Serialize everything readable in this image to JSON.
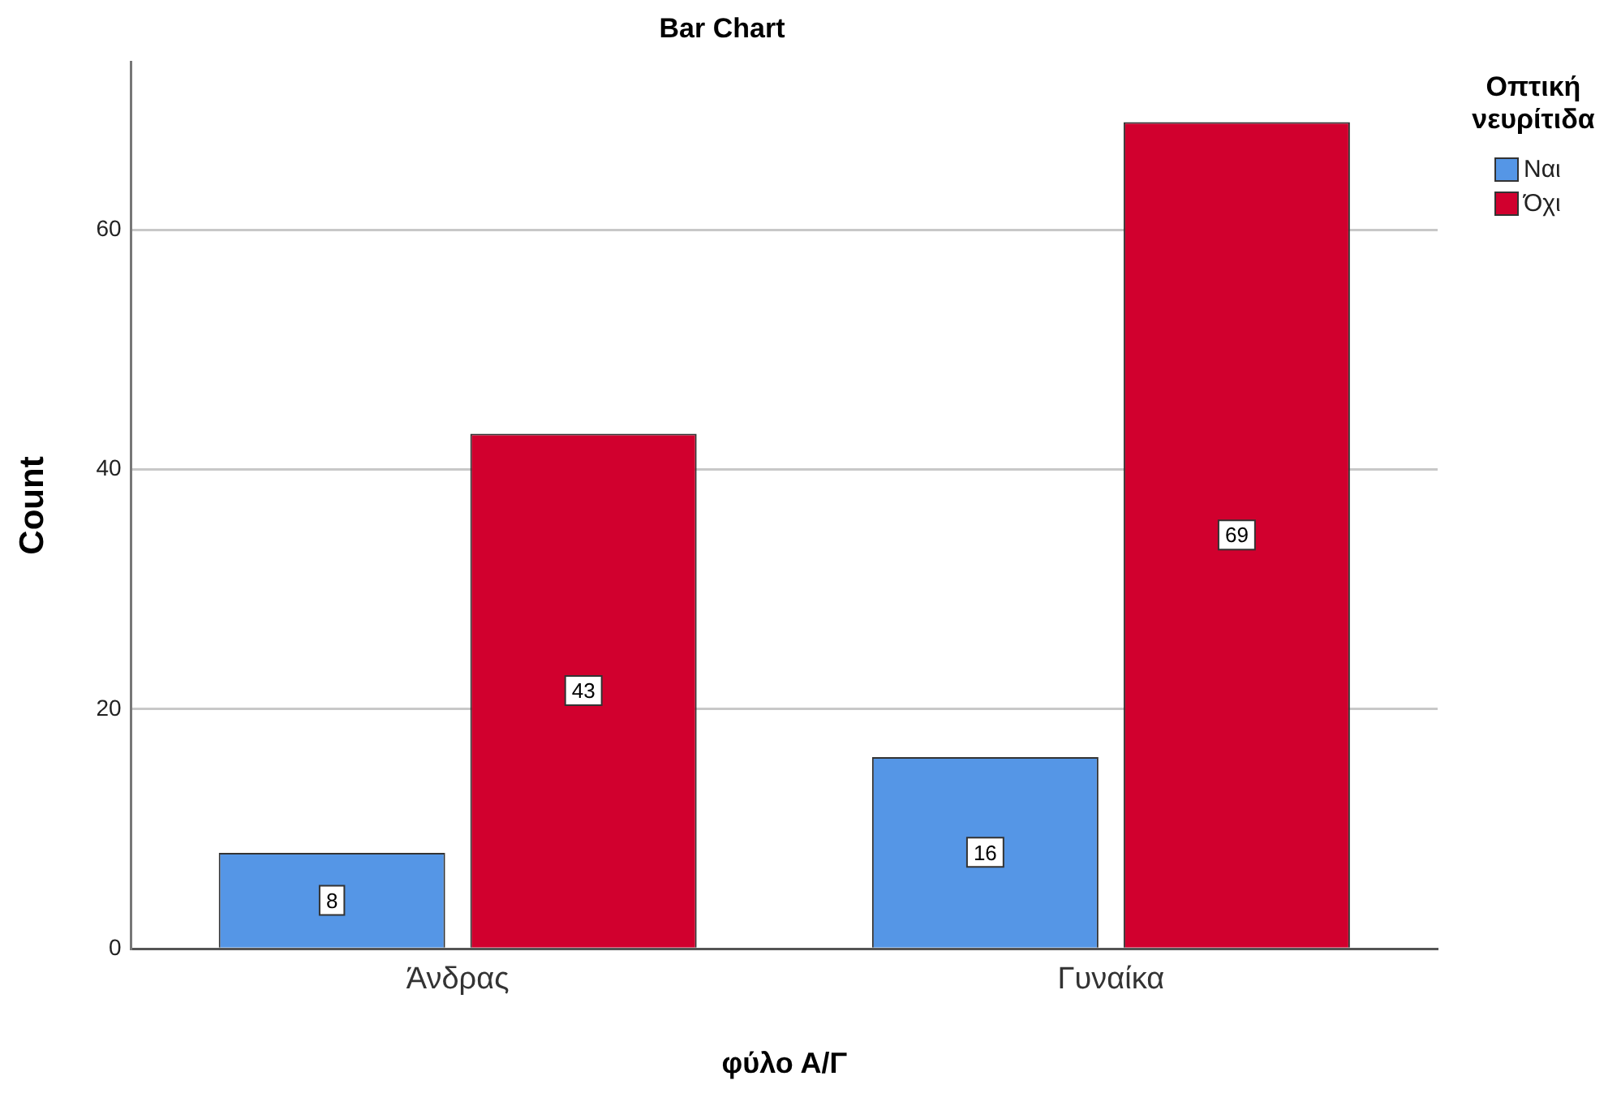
{
  "chart_data": {
    "type": "bar",
    "title": "Bar Chart",
    "xlabel": "φύλο Α/Γ",
    "ylabel": "Count",
    "legend_title": "Οπτική νευρίτιδα",
    "categories": [
      "Άνδρας",
      "Γυναίκα"
    ],
    "series": [
      {
        "name": "Ναι",
        "color": "#5596e6",
        "values": [
          8,
          16
        ]
      },
      {
        "name": "Όχι",
        "color": "#d1002e",
        "values": [
          43,
          69
        ]
      }
    ],
    "ylim": [
      0,
      74
    ],
    "yticks": [
      0,
      20,
      40,
      60
    ],
    "grid": "y",
    "legend": "right",
    "data_labels": true
  }
}
